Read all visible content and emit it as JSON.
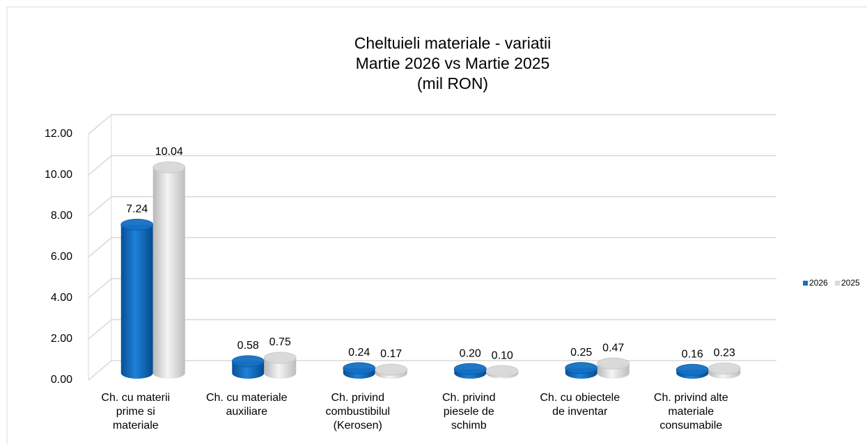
{
  "chart_data": {
    "type": "bar3d",
    "title": "Cheltuieli materiale - variatii\nMartie 2026 vs Martie 2025\n(mil RON)",
    "categories": [
      "Ch. cu materii\nprime si\nmateriale",
      "Ch. cu materiale\nauxiliare",
      "Ch. privind\ncombustibilul\n(Kerosen)",
      "Ch. privind\npiesele de\nschimb",
      "Ch. cu obiectele\nde inventar",
      "Ch. privind alte\nmateriale\nconsumabile"
    ],
    "series": [
      {
        "name": "2026",
        "color": "#1570c4",
        "values": [
          7.24,
          0.58,
          0.24,
          0.2,
          0.25,
          0.16
        ],
        "value_labels": [
          "7.24",
          "0.58",
          "0.24",
          "0.20",
          "0.25",
          "0.16"
        ]
      },
      {
        "name": "2025",
        "color": "#d9d9d9",
        "values": [
          10.04,
          0.75,
          0.17,
          0.1,
          0.47,
          0.23
        ],
        "value_labels": [
          "10.04",
          "0.75",
          "0.17",
          "0.10",
          "0.47",
          "0.23"
        ]
      }
    ],
    "ylim": [
      0,
      12
    ],
    "yticks": [
      {
        "value": 0,
        "label": "0.00"
      },
      {
        "value": 2,
        "label": "2.00"
      },
      {
        "value": 4,
        "label": "4.00"
      },
      {
        "value": 6,
        "label": "6.00"
      },
      {
        "value": 8,
        "label": "8.00"
      },
      {
        "value": 10,
        "label": "10.00"
      },
      {
        "value": 12,
        "label": "12.00"
      }
    ],
    "grid": true,
    "legend": "right"
  }
}
